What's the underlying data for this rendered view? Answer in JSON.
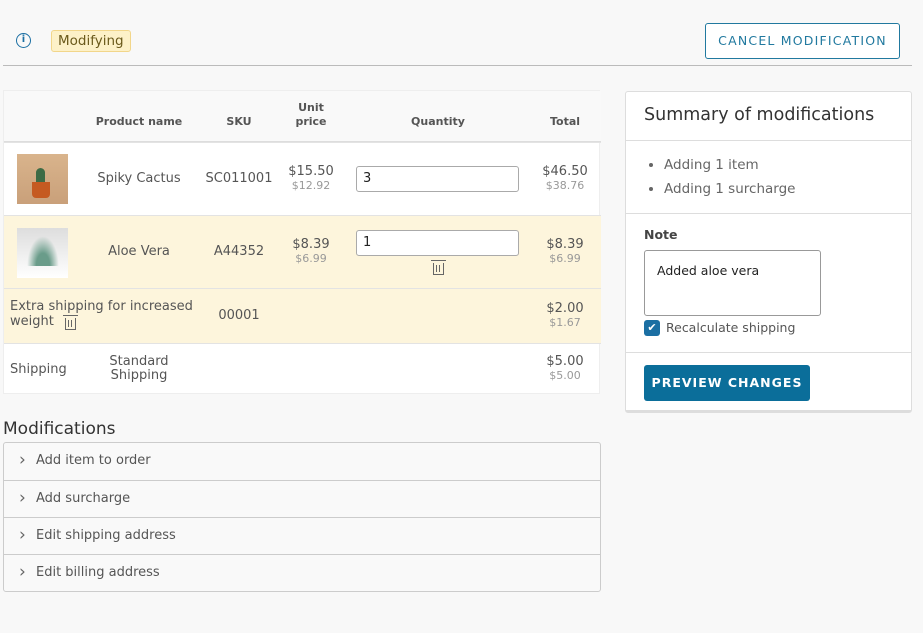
{
  "header": {
    "status_badge": "Modifying",
    "cancel_label": "CANCEL MODIFICATION",
    "info_icon": "info-icon"
  },
  "table": {
    "columns": [
      "",
      "Product name",
      "SKU",
      "Unit price",
      "Quantity",
      "Total"
    ],
    "rows": [
      {
        "name": "Spiky Cactus",
        "sku": "SC011001",
        "unit_price": "$15.50",
        "unit_price_net": "$12.92",
        "quantity": "3",
        "total": "$46.50",
        "total_net": "$38.76"
      },
      {
        "name": "Aloe Vera",
        "sku": "A44352",
        "unit_price": "$8.39",
        "unit_price_net": "$6.99",
        "quantity": "1",
        "total": "$8.39",
        "total_net": "$6.99"
      },
      {
        "name": "Extra shipping for increased weight",
        "sku": "00001",
        "total": "$2.00",
        "total_net": "$1.67"
      },
      {
        "label": "Shipping",
        "name": "Standard Shipping",
        "total": "$5.00",
        "total_net": "$5.00"
      }
    ]
  },
  "modifications": {
    "title": "Modifications",
    "items": [
      "Add item to order",
      "Add surcharge",
      "Edit shipping address",
      "Edit billing address"
    ]
  },
  "summary": {
    "title": "Summary of modifications",
    "items": [
      "Adding 1 item",
      "Adding 1 surcharge"
    ],
    "note_label": "Note",
    "note_value": "Added aloe vera",
    "recalculate_label": "Recalculate shipping",
    "recalculate_checked": true,
    "preview_label": "PREVIEW CHANGES"
  },
  "colors": {
    "accent": "#0b6e9a",
    "modified_row": "#fdf5dc",
    "badge": "#fdf1c8"
  }
}
